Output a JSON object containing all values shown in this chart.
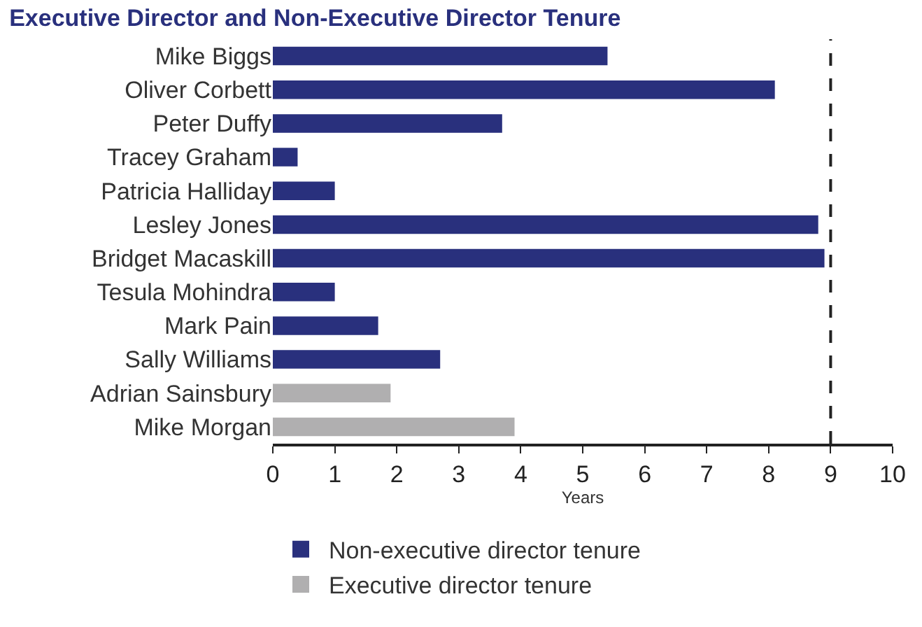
{
  "chart_data": {
    "type": "bar",
    "orientation": "horizontal",
    "title": "Executive Director and Non-Executive Director Tenure",
    "xlabel": "Years",
    "categories": [
      "Mike Biggs",
      "Oliver Corbett",
      "Peter Duffy",
      "Tracey Graham",
      "Patricia Halliday",
      "Lesley Jones",
      "Bridget Macaskill",
      "Tesula Mohindra",
      "Mark Pain",
      "Sally Williams",
      "Adrian Sainsbury",
      "Mike Morgan"
    ],
    "series": [
      {
        "name": "Non-executive director tenure",
        "color": "#29307d",
        "values": [
          5.4,
          8.1,
          3.7,
          0.4,
          1.0,
          8.8,
          8.9,
          1.0,
          1.7,
          2.7,
          null,
          null
        ]
      },
      {
        "name": "Executive director tenure",
        "color": "#b0afb0",
        "values": [
          null,
          null,
          null,
          null,
          null,
          null,
          null,
          null,
          null,
          null,
          1.9,
          3.9
        ]
      }
    ],
    "xlim": [
      0,
      10
    ],
    "xticks": [
      0,
      1,
      2,
      3,
      4,
      5,
      6,
      7,
      8,
      9,
      10
    ],
    "ref_lines": [
      {
        "axis": "x",
        "value": 9,
        "color": "#222222",
        "line_style": "dashed"
      }
    ],
    "legend": "bottom"
  }
}
